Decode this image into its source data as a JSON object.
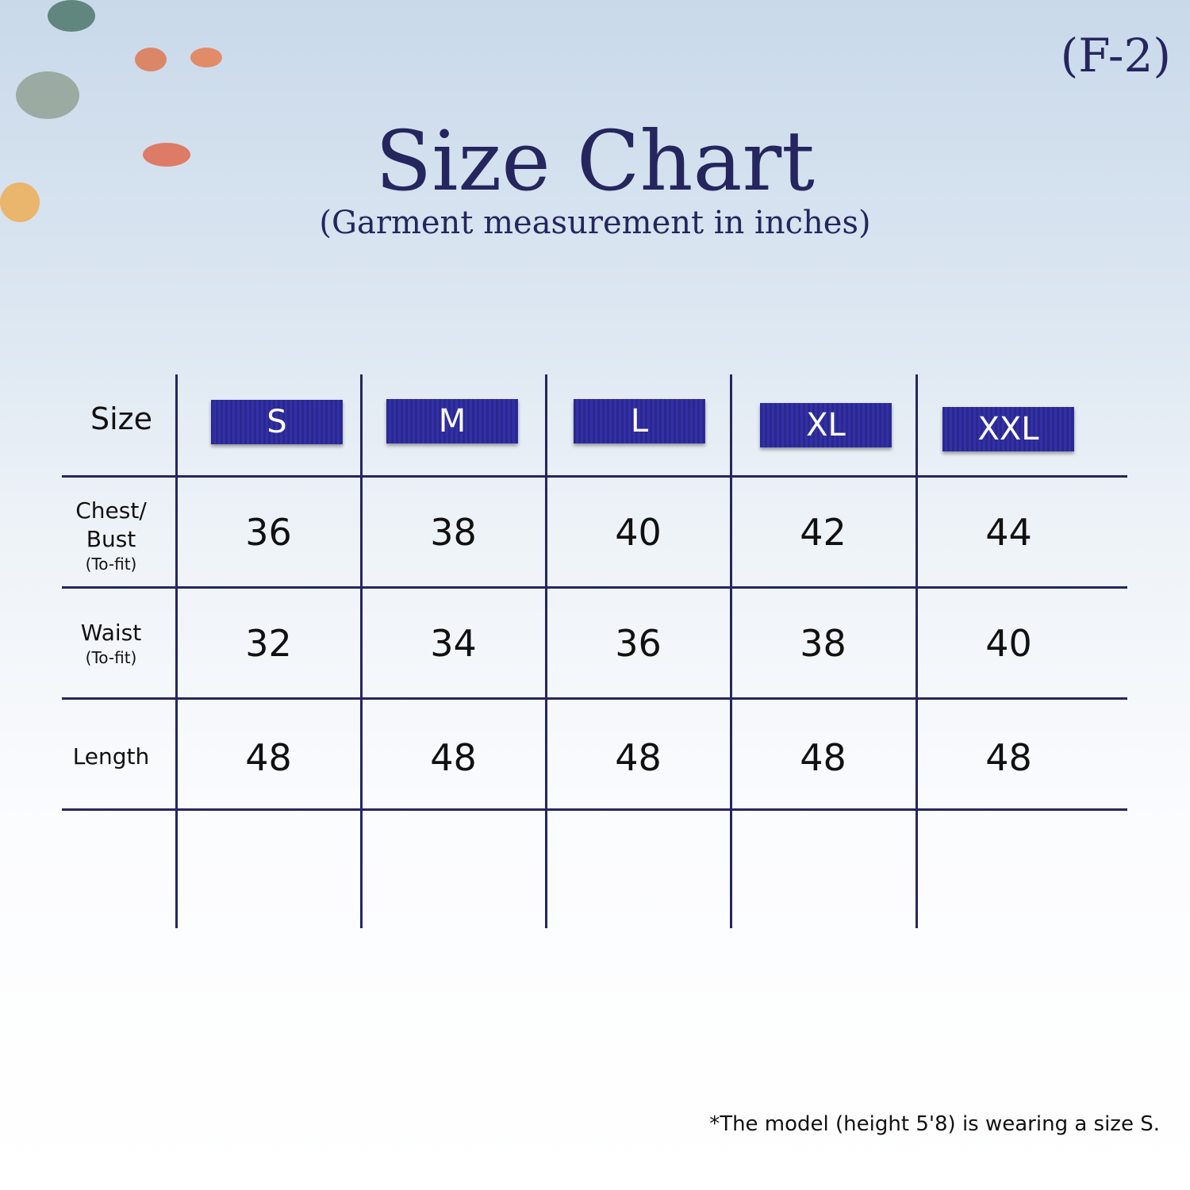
{
  "code": "(F-2)",
  "title": "Size Chart",
  "subtitle": "(Garment measurement in inches)",
  "table": {
    "header_label": "Size",
    "sizes": [
      "S",
      "M",
      "L",
      "XL",
      "XXL"
    ],
    "rows": [
      {
        "label": "Chest/",
        "label2": "Bust",
        "sub": "(To-fit)",
        "values": [
          "36",
          "38",
          "40",
          "42",
          "44"
        ]
      },
      {
        "label": "Waist",
        "sub": "(To-fit)",
        "values": [
          "32",
          "34",
          "36",
          "38",
          "40"
        ]
      },
      {
        "label": "Length",
        "values": [
          "48",
          "48",
          "48",
          "48",
          "48"
        ]
      }
    ]
  },
  "note": "*The model (height 5'8) is wearing a size S.",
  "colors": {
    "ink": "#25265e",
    "badge": "#2f2c9c"
  }
}
